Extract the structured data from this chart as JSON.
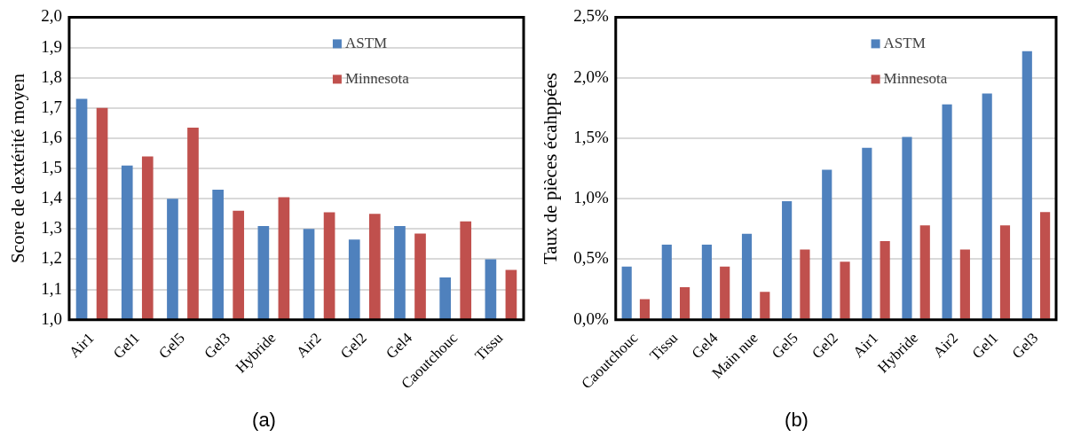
{
  "chart_data": [
    {
      "type": "bar",
      "title": "(a)",
      "ylabel": "Score de dextérité moyen",
      "categories": [
        "Air1",
        "Gel1",
        "Gel5",
        "Gel3",
        "Hybride",
        "Air2",
        "Gel2",
        "Gel4",
        "Caoutchouc",
        "Tissu"
      ],
      "series": [
        {
          "name": "ASTM",
          "color": "#4f81bd",
          "values": [
            1.73,
            1.51,
            1.4,
            1.43,
            1.31,
            1.3,
            1.265,
            1.31,
            1.14,
            1.2
          ]
        },
        {
          "name": "Minnesota",
          "color": "#c0504d",
          "values": [
            1.7,
            1.54,
            1.635,
            1.36,
            1.405,
            1.355,
            1.35,
            1.285,
            1.325,
            1.165
          ]
        }
      ],
      "ylim": [
        1.0,
        2.0
      ],
      "yticks": [
        {
          "value": 1.0,
          "label": "1,0"
        },
        {
          "value": 1.1,
          "label": "1,1"
        },
        {
          "value": 1.2,
          "label": "1,2"
        },
        {
          "value": 1.3,
          "label": "1,3"
        },
        {
          "value": 1.4,
          "label": "1,4"
        },
        {
          "value": 1.5,
          "label": "1,5"
        },
        {
          "value": 1.6,
          "label": "1,6"
        },
        {
          "value": 1.7,
          "label": "1,7"
        },
        {
          "value": 1.8,
          "label": "1,8"
        },
        {
          "value": 1.9,
          "label": "1,9"
        },
        {
          "value": 2.0,
          "label": "2,0"
        }
      ],
      "grid": "y",
      "legend": "top right"
    },
    {
      "type": "bar",
      "title": "(b)",
      "ylabel": "Taux de pièces écahppées",
      "categories": [
        "Caoutchouc",
        "Tissu",
        "Gel4",
        "Main nue",
        "Gel5",
        "Gel2",
        "Air1",
        "Hybride",
        "Air2",
        "Gel1",
        "Gel3"
      ],
      "series": [
        {
          "name": "ASTM",
          "color": "#4f81bd",
          "values": [
            0.44,
            0.62,
            0.62,
            0.71,
            0.98,
            1.24,
            1.42,
            1.51,
            1.78,
            1.87,
            2.22
          ]
        },
        {
          "name": "Minnesota",
          "color": "#c0504d",
          "values": [
            0.17,
            0.27,
            0.44,
            0.23,
            0.58,
            0.48,
            0.65,
            0.78,
            0.58,
            0.78,
            0.89
          ]
        }
      ],
      "ylim": [
        0,
        2.5
      ],
      "yticks": [
        {
          "value": 0,
          "label": "0,0%"
        },
        {
          "value": 0.5,
          "label": "0,5%"
        },
        {
          "value": 1.0,
          "label": "1,0%"
        },
        {
          "value": 1.5,
          "label": "1,5%"
        },
        {
          "value": 2.0,
          "label": "2,0%"
        },
        {
          "value": 2.5,
          "label": "2,5%"
        }
      ],
      "grid": "y",
      "legend": "top right"
    }
  ]
}
